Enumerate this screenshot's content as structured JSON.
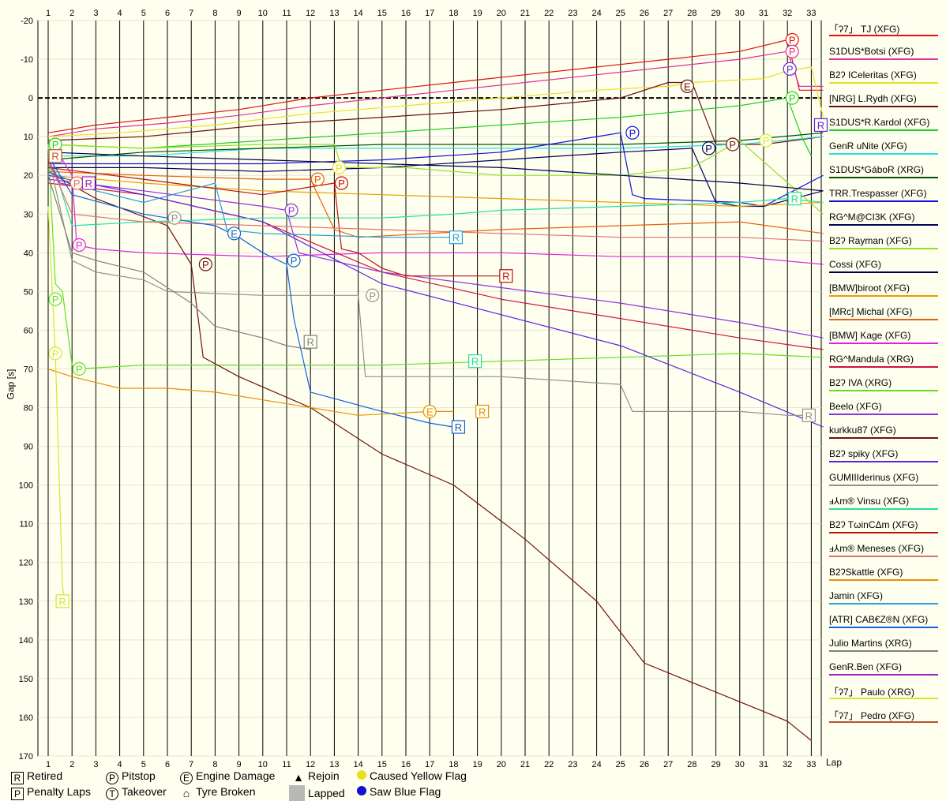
{
  "chart_data": {
    "type": "line",
    "xlabel": "Lap",
    "ylabel": "Gap [s]",
    "x_ticks": [
      1,
      2,
      3,
      4,
      5,
      6,
      7,
      8,
      9,
      10,
      11,
      12,
      13,
      14,
      15,
      16,
      17,
      18,
      19,
      20,
      21,
      22,
      23,
      24,
      25,
      26,
      27,
      28,
      29,
      30,
      31,
      32,
      33
    ],
    "y_ticks": [
      -20,
      -10,
      0,
      10,
      20,
      30,
      40,
      50,
      60,
      70,
      80,
      90,
      100,
      110,
      120,
      130,
      140,
      150,
      160,
      170
    ],
    "ylim": [
      -20,
      170
    ],
    "xlim": [
      1,
      33.6
    ],
    "y_inverted": true,
    "grid": true,
    "legend_position": "right",
    "series": [
      {
        "name": "「ʔ7」 TJ (XFG)",
        "color": "#e01010",
        "x": [
          1,
          3,
          6,
          9,
          12,
          15,
          18,
          21,
          24,
          27,
          30,
          32,
          32.5,
          33.5
        ],
        "y": [
          9,
          7,
          5,
          3,
          0,
          -2,
          -4,
          -6,
          -8,
          -10,
          -12,
          -15,
          -2,
          -2
        ]
      },
      {
        "name": "S1DUS*Botsi (XFG)",
        "color": "#e0309a",
        "x": [
          1,
          3,
          6,
          9,
          12,
          15,
          18,
          21,
          24,
          27,
          30,
          32,
          32.5,
          33.5
        ],
        "y": [
          10,
          8,
          6.5,
          4.5,
          2,
          0,
          -2,
          -4,
          -6,
          -8,
          -10,
          -12,
          -3,
          -3
        ]
      },
      {
        "name": "B2ʔ ICeleritas (XFG)",
        "color": "#e8e020",
        "x": [
          1,
          4,
          8,
          12,
          16,
          20,
          24,
          27,
          28,
          31,
          32,
          33,
          33.5
        ],
        "y": [
          10,
          9,
          7,
          4,
          2,
          0,
          -2,
          -3,
          -4,
          -5,
          -7,
          -8,
          5
        ]
      },
      {
        "name": "[NRG] L.Rydh (XFG)",
        "color": "#6a1010",
        "x": [
          1,
          5,
          10,
          15,
          20,
          25,
          27,
          28,
          29,
          31,
          33.5
        ],
        "y": [
          11,
          10,
          7,
          5,
          3,
          0,
          -4,
          -4,
          12,
          12,
          10
        ]
      },
      {
        "name": "S1DUS*R.Kardol (XFG)",
        "color": "#20d020",
        "x": [
          1,
          5,
          10,
          15,
          20,
          25,
          30,
          32,
          32.6,
          33
        ],
        "y": [
          12,
          13,
          11,
          9,
          7,
          5,
          2,
          0,
          10,
          15
        ]
      },
      {
        "name": "GenR uNite (XFG)",
        "color": "#20e0e0",
        "x": [
          1,
          5,
          10,
          15,
          20,
          25,
          30,
          33.5
        ],
        "y": [
          15,
          15,
          13,
          13,
          13,
          13,
          12,
          10
        ]
      },
      {
        "name": "S1DUS*GáboR (XRG)",
        "color": "#005000",
        "x": [
          1,
          5,
          10,
          15,
          20,
          25,
          30,
          33.5
        ],
        "y": [
          16,
          14,
          13,
          12,
          12,
          12,
          11,
          9
        ]
      },
      {
        "name": "TRR.Trespasser (XFG)",
        "color": "#1010e0",
        "x": [
          1,
          5,
          10,
          15,
          20,
          25,
          25.5,
          26,
          30,
          31,
          33.5
        ],
        "y": [
          17,
          17,
          17,
          16,
          14,
          9,
          25,
          26,
          27,
          28,
          20
        ]
      },
      {
        "name": "RG^M@CI3K (XFG)",
        "color": "#000060",
        "x": [
          1,
          5,
          10,
          15,
          20,
          25,
          28,
          29,
          30,
          31,
          33.5
        ],
        "y": [
          18,
          18,
          19,
          18,
          16,
          14,
          13,
          27,
          28,
          28,
          24
        ]
      },
      {
        "name": "B2ʔ Rayman (XFG)",
        "color": "#90e020",
        "x": [
          1,
          5,
          10,
          13,
          13.3,
          16,
          20,
          25,
          28,
          30,
          33.5
        ],
        "y": [
          12,
          13,
          12,
          12,
          18,
          18,
          20,
          20,
          18,
          11,
          30
        ]
      },
      {
        "name": "Cossi (XFG)",
        "color": "#000050",
        "x": [
          1,
          5,
          10,
          15,
          20,
          25,
          30,
          33.5
        ],
        "y": [
          14,
          15,
          16,
          17,
          18,
          20,
          22,
          24
        ]
      },
      {
        "name": "[BMW]biroot (XFG)",
        "color": "#e8a000",
        "x": [
          1,
          5,
          10,
          15,
          20,
          25,
          30,
          33.5
        ],
        "y": [
          20,
          22,
          24,
          25,
          26,
          27,
          28,
          27
        ]
      },
      {
        "name": "[MRc] Michal (XFG)",
        "color": "#e86010",
        "x": [
          1,
          5,
          10,
          12,
          13,
          14,
          20,
          25,
          30,
          33.5
        ],
        "y": [
          19,
          20,
          21,
          21,
          34,
          36,
          34,
          33,
          32,
          35
        ]
      },
      {
        "name": "[BMW] Kage (XFG)",
        "color": "#e020e0",
        "x": [
          1,
          1.5,
          2,
          2.2,
          3,
          5,
          10,
          15,
          20,
          25,
          30,
          33.5
        ],
        "y": [
          14,
          15,
          20,
          38,
          39,
          40,
          41,
          40,
          40,
          41,
          41,
          43
        ]
      },
      {
        "name": "RG^Mandula (XRG)",
        "color": "#d01040",
        "x": [
          1,
          5,
          10,
          15,
          20,
          25,
          30,
          33.5
        ],
        "y": [
          22,
          25,
          32,
          45,
          52,
          57,
          62,
          65
        ]
      },
      {
        "name": "B2ʔ IVA (XRG)",
        "color": "#60e020",
        "x": [
          1,
          1.3,
          1.6,
          2,
          2.2,
          5,
          10,
          15,
          20,
          25,
          30,
          33.5
        ],
        "y": [
          12,
          48,
          50,
          69,
          70,
          69,
          69,
          69,
          68,
          67,
          66,
          67
        ]
      },
      {
        "name": "Beelo (XFG)",
        "color": "#9030e0",
        "x": [
          1,
          5,
          10,
          11,
          11.5,
          15,
          20,
          25,
          30,
          33.5
        ],
        "y": [
          21,
          24,
          28,
          29,
          40,
          45,
          49,
          53,
          58,
          62
        ]
      },
      {
        "name": "kurkku87 (XFG)",
        "color": "#701010",
        "x": [
          1,
          3,
          6,
          7,
          7.5,
          9,
          12,
          15,
          18,
          21,
          24,
          26,
          28,
          30,
          32,
          33
        ],
        "y": [
          19,
          26,
          33,
          43,
          67,
          72,
          80,
          92,
          100,
          114,
          130,
          146,
          151,
          156,
          161,
          166
        ]
      },
      {
        "name": "B2ʔ spiky (XFG)",
        "color": "#6020e0",
        "x": [
          1,
          5,
          10,
          15,
          20,
          25,
          30,
          33.5
        ],
        "y": [
          20,
          25,
          32,
          48,
          56,
          64,
          76,
          85
        ]
      },
      {
        "name": "GUMIIIderinus (XFG)",
        "color": "#909090",
        "x": [
          1,
          2,
          3,
          5,
          6,
          10,
          14,
          14.3,
          15,
          20,
          25,
          25.5,
          30,
          32,
          33
        ],
        "y": [
          15,
          42,
          45,
          47,
          50,
          51,
          51,
          72,
          72,
          72,
          74,
          81,
          81,
          82,
          82
        ]
      },
      {
        "name": "ⅎ⅄m® Vinsu (XFG)",
        "color": "#20e0a0",
        "x": [
          1,
          2,
          5,
          10,
          15,
          18,
          20,
          25,
          30,
          32,
          33.5
        ],
        "y": [
          13,
          33,
          32,
          31,
          31,
          30,
          29,
          28,
          27,
          26,
          27
        ]
      },
      {
        "name": "B2ʔ TωinCΔm (XFG)",
        "color": "#c01010",
        "x": [
          1,
          5,
          10,
          13,
          13.3,
          14,
          15,
          16,
          18,
          20
        ],
        "y": [
          18,
          21,
          25,
          22,
          39,
          40,
          44,
          46,
          46,
          46
        ]
      },
      {
        "name": "ⅎ⅄m® Meneses (XFG)",
        "color": "#e07070",
        "x": [
          1,
          2,
          5,
          10,
          15,
          20,
          25,
          30,
          33.5
        ],
        "y": [
          16,
          30,
          32,
          33,
          34,
          35,
          36,
          36,
          37
        ]
      },
      {
        "name": "B2ʔSkattle (XFG)",
        "color": "#e89000",
        "x": [
          1,
          2,
          4,
          6,
          8,
          10,
          12,
          14,
          17,
          18
        ],
        "y": [
          70,
          72,
          75,
          75,
          76,
          78,
          80,
          82,
          81,
          81
        ]
      },
      {
        "name": "Jamin (XFG)",
        "color": "#20a0e0",
        "x": [
          1,
          3,
          5,
          8,
          8.5,
          10,
          15,
          18
        ],
        "y": [
          19,
          24,
          27,
          22,
          34,
          35,
          36,
          36
        ]
      },
      {
        "name": "[ATR] CAB€Z®N (XFG)",
        "color": "#1060e0",
        "x": [
          1,
          2,
          5,
          8,
          9,
          10,
          11,
          11.3,
          12,
          15,
          17,
          18
        ],
        "y": [
          15,
          25,
          30,
          33,
          36,
          40,
          43,
          57,
          76,
          81,
          84,
          85
        ]
      },
      {
        "name": "Julio Martins (XRG)",
        "color": "#808080",
        "x": [
          1,
          2,
          3,
          5,
          7,
          8,
          10,
          11,
          12
        ],
        "y": [
          20,
          40,
          42,
          45,
          53,
          59,
          62,
          64,
          65
        ]
      },
      {
        "name": "GenR.Ben (XFG)",
        "color": "#a020c0",
        "x": [
          1,
          1.5,
          2.3,
          3
        ],
        "y": [
          16,
          22,
          23,
          23
        ]
      },
      {
        "name": "「ʔ7」 Paulo (XRG)",
        "color": "#d0e830",
        "x": [
          1,
          1.3,
          1.6,
          1.7
        ],
        "y": [
          28,
          66,
          126,
          130
        ]
      },
      {
        "name": "「ʔ7」 Pedro (XFG)",
        "color": "#c05030",
        "x": [
          1,
          1.3
        ],
        "y": [
          15,
          16
        ]
      }
    ],
    "markers": [
      {
        "kind": "P",
        "lap": 32.2,
        "gap": -15,
        "color": "#e01010"
      },
      {
        "kind": "P",
        "lap": 32.2,
        "gap": -12,
        "color": "#e0309a"
      },
      {
        "kind": "P",
        "lap": 32.1,
        "gap": -7.5,
        "color": "#6020e0"
      },
      {
        "kind": "P",
        "lap": 32.2,
        "gap": 0,
        "color": "#20d020"
      },
      {
        "kind": "E",
        "lap": 27.8,
        "gap": -3,
        "color": "#6a1010"
      },
      {
        "kind": "P",
        "lap": 25.5,
        "gap": 9,
        "color": "#1010e0"
      },
      {
        "kind": "P",
        "lap": 28.7,
        "gap": 13,
        "color": "#000060"
      },
      {
        "kind": "P",
        "lap": 29.7,
        "gap": 12,
        "color": "#6a1010"
      },
      {
        "kind": "P",
        "lap": 31.1,
        "gap": 11,
        "color": "#d0e830"
      },
      {
        "kind": "R",
        "lap": 33.4,
        "gap": 7,
        "color": "#6020e0"
      },
      {
        "kind": "R",
        "lap": 32.3,
        "gap": 26,
        "color": "#20e0a0"
      },
      {
        "kind": "P",
        "lap": 1.3,
        "gap": 12,
        "color": "#20d020"
      },
      {
        "kind": "R",
        "lap": 1.3,
        "gap": 15,
        "color": "#c05030"
      },
      {
        "kind": "P",
        "lap": 2.2,
        "gap": 22,
        "color": "#e07070"
      },
      {
        "kind": "R",
        "lap": 2.7,
        "gap": 22,
        "color": "#a020c0"
      },
      {
        "kind": "P",
        "lap": 13.2,
        "gap": 18,
        "color": "#e8e020"
      },
      {
        "kind": "P",
        "lap": 12.3,
        "gap": 21,
        "color": "#e86010"
      },
      {
        "kind": "P",
        "lap": 13.3,
        "gap": 22,
        "color": "#c01010"
      },
      {
        "kind": "P",
        "lap": 11.2,
        "gap": 29,
        "color": "#9030e0"
      },
      {
        "kind": "P",
        "lap": 6.3,
        "gap": 31,
        "color": "#909090"
      },
      {
        "kind": "E",
        "lap": 8.8,
        "gap": 35,
        "color": "#1060e0"
      },
      {
        "kind": "R",
        "lap": 18.1,
        "gap": 36,
        "color": "#20a0e0"
      },
      {
        "kind": "P",
        "lap": 2.3,
        "gap": 38,
        "color": "#e020e0"
      },
      {
        "kind": "P",
        "lap": 7.6,
        "gap": 43,
        "color": "#701010"
      },
      {
        "kind": "P",
        "lap": 11.3,
        "gap": 42,
        "color": "#1060e0"
      },
      {
        "kind": "R",
        "lap": 20.2,
        "gap": 46,
        "color": "#c01010"
      },
      {
        "kind": "P",
        "lap": 1.3,
        "gap": 52,
        "color": "#60e020"
      },
      {
        "kind": "P",
        "lap": 14.6,
        "gap": 51,
        "color": "#909090"
      },
      {
        "kind": "R",
        "lap": 12.0,
        "gap": 63,
        "color": "#808080"
      },
      {
        "kind": "P",
        "lap": 1.3,
        "gap": 66,
        "color": "#d0e830"
      },
      {
        "kind": "P",
        "lap": 2.3,
        "gap": 70,
        "color": "#60e020"
      },
      {
        "kind": "R",
        "lap": 18.9,
        "gap": 68,
        "color": "#20e0a0"
      },
      {
        "kind": "E",
        "lap": 17.0,
        "gap": 81,
        "color": "#e89000"
      },
      {
        "kind": "R",
        "lap": 19.2,
        "gap": 81,
        "color": "#e89000"
      },
      {
        "kind": "R",
        "lap": 18.2,
        "gap": 85,
        "color": "#1060e0"
      },
      {
        "kind": "R",
        "lap": 1.6,
        "gap": 130,
        "color": "#d0e830"
      },
      {
        "kind": "R",
        "lap": 32.9,
        "gap": 82,
        "color": "#909090"
      }
    ]
  },
  "bottom_legend": {
    "retired": "Retired",
    "penalty_laps": "Penalty Laps",
    "pitstop": "Pitstop",
    "takeover": "Takeover",
    "engine_damage": "Engine Damage",
    "tyre_broken": "Tyre Broken",
    "rejoin": "Rejoin",
    "lapped": "Lapped",
    "caused_yellow_flag": "Caused Yellow Flag",
    "saw_blue_flag": "Saw Blue Flag",
    "symbol_R": "R",
    "symbol_P": "P",
    "symbol_T": "T",
    "symbol_E": "E",
    "yellow_color": "#e8e020",
    "blue_color": "#1010d0"
  }
}
